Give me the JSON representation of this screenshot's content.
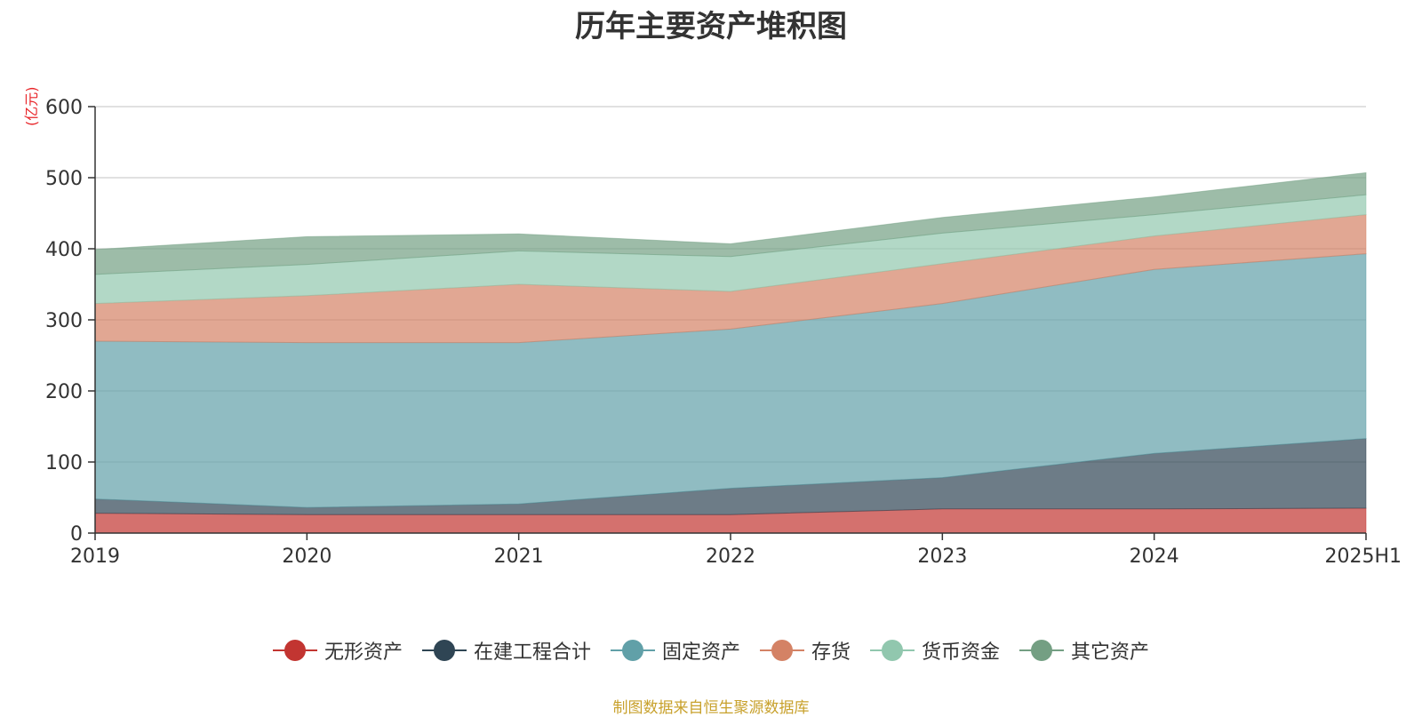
{
  "chart_data": {
    "type": "area",
    "stacked": true,
    "title": "历年主要资产堆积图",
    "unit_label": "(亿元)",
    "categories": [
      "2019",
      "2020",
      "2021",
      "2022",
      "2023",
      "2024",
      "2025H1"
    ],
    "ylim": [
      0,
      600
    ],
    "yticks": [
      "0",
      "100",
      "200",
      "300",
      "400",
      "500",
      "600"
    ],
    "grid": true,
    "legend_position": "bottom",
    "series": [
      {
        "name": "无形资产",
        "color": "#c23531",
        "values": [
          28,
          26,
          26,
          26,
          34,
          34,
          35
        ]
      },
      {
        "name": "在建工程合计",
        "color": "#2f4554",
        "values": [
          20,
          10,
          15,
          37,
          44,
          78,
          98
        ]
      },
      {
        "name": "固定资产",
        "color": "#61a0a8",
        "values": [
          222,
          232,
          227,
          224,
          245,
          259,
          260
        ]
      },
      {
        "name": "存货",
        "color": "#d48265",
        "values": [
          53,
          66,
          82,
          53,
          56,
          47,
          55
        ]
      },
      {
        "name": "货币资金",
        "color": "#91c7ae",
        "values": [
          41,
          44,
          47,
          49,
          43,
          30,
          28
        ]
      },
      {
        "name": "其它资产",
        "color": "#749f83",
        "values": [
          35,
          39,
          24,
          18,
          22,
          25,
          31
        ]
      }
    ],
    "source": "制图数据来自恒生聚源数据库"
  }
}
